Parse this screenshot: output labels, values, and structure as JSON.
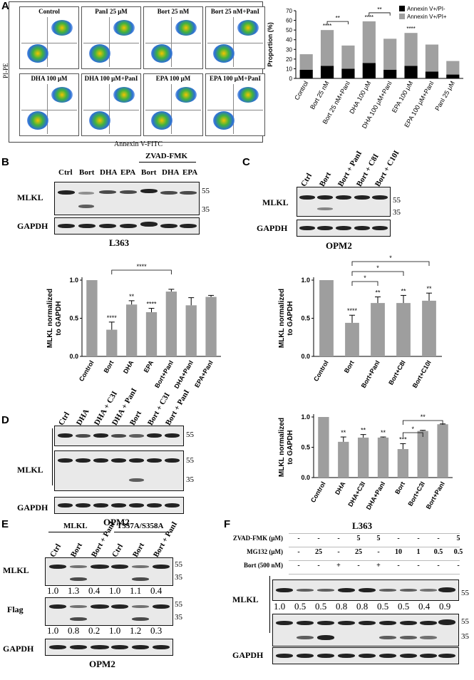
{
  "panels": {
    "A": {
      "label": "A",
      "flow_titles": [
        "Control",
        "PanI 25 μM",
        "Bort 25 nM",
        "Bort 25 nM+PanI",
        "DHA 100 μM",
        "DHA 100 μM+PanI",
        "EPA 100 μM",
        "EPA 100 μM+PanI"
      ],
      "flow_xlabel": "Annexin V-FITC",
      "flow_ylabel": "PI-PE",
      "chart_data": {
        "type": "bar",
        "stacked": true,
        "categories": [
          "Control",
          "Bort 25 nM",
          "Bort 25 nM+PanI",
          "DHA 100 μM",
          "DHA 100 μM+PanI",
          "EPA 100 μM",
          "EPA 100 μM+PanI",
          "PanI 25 μM"
        ],
        "series": [
          {
            "name": "Annexin V+/PI-",
            "color": "#000000",
            "values": [
              9,
              13,
              10,
              16,
              9,
              13,
              7,
              4
            ]
          },
          {
            "name": "Annexin V+/PI+",
            "color": "#a0a0a0",
            "values": [
              16,
              37,
              24,
              43,
              32,
              34,
              28,
              14
            ]
          }
        ],
        "ylabel": "Proportion (%)",
        "ylim": [
          0,
          70
        ],
        "yticks": [
          "0",
          "10",
          "20",
          "30",
          "40",
          "50",
          "60",
          "70"
        ],
        "sig": [
          "****",
          "****",
          "****"
        ],
        "brackets": [
          "**",
          "**"
        ],
        "legend": "top-right"
      }
    },
    "B": {
      "label": "B",
      "lanes": [
        "Ctrl",
        "Bort",
        "DHA",
        "EPA",
        "Bort",
        "DHA",
        "EPA"
      ],
      "group": "ZVAD-FMK",
      "rows": [
        "MLKL",
        "GAPDH"
      ],
      "mw": [
        "55",
        "35"
      ],
      "cell": "L363",
      "chart_data": {
        "type": "bar",
        "categories": [
          "Control",
          "Bort",
          "DHA",
          "EPA",
          "Bort+PanI",
          "DHA+PanI",
          "EPA+PanI"
        ],
        "values": [
          1.0,
          0.35,
          0.68,
          0.58,
          0.85,
          0.67,
          0.78
        ],
        "errors": [
          0,
          0.1,
          0.05,
          0.05,
          0.03,
          0.1,
          0.02
        ],
        "sig": [
          "",
          "****",
          "**",
          "****",
          "",
          "",
          ""
        ],
        "bracket": "****",
        "ylabel": "MLKL normalized to GAPDH",
        "ylim": [
          0,
          1.0
        ],
        "yticks": [
          "0.0",
          "0.5",
          "1.0"
        ]
      }
    },
    "C": {
      "label": "C",
      "lanes": [
        "Ctrl",
        "Bort",
        "Bort + PanI",
        "Bort + C8I",
        "Bort + C10I"
      ],
      "rows": [
        "MLKL",
        "GAPDH"
      ],
      "mw": [
        "55",
        "35"
      ],
      "cell": "OPM2",
      "chart_data": {
        "type": "bar",
        "categories": [
          "Control",
          "Bort",
          "Bort+PanI",
          "Bort+C8I",
          "Bort+C10I"
        ],
        "values": [
          1.0,
          0.44,
          0.7,
          0.7,
          0.73
        ],
        "errors": [
          0,
          0.1,
          0.08,
          0.1,
          0.1
        ],
        "sig": [
          "",
          "****",
          "**",
          "**",
          "**"
        ],
        "brackets": [
          "*",
          "*",
          "*"
        ],
        "ylabel": "MLKL normalized to GAPDH",
        "ylim": [
          0,
          1.0
        ],
        "yticks": [
          "0.0",
          "0.5",
          "1.0"
        ]
      }
    },
    "D": {
      "label": "D",
      "lanes": [
        "Ctrl",
        "DHA",
        "DHA + C3I",
        "DHA + PanI",
        "Bort",
        "Bort + C3I",
        "Bort + PanI"
      ],
      "rows": [
        "MLKL",
        "GAPDH"
      ],
      "mw": [
        "55",
        "55",
        "35"
      ],
      "cell": "OPM2",
      "chart_data": {
        "type": "bar",
        "categories": [
          "Control",
          "DHA",
          "DHA+C3I",
          "DHA+PanI",
          "Bort",
          "Bort+C3I",
          "Bort+PanI"
        ],
        "values": [
          1.0,
          0.59,
          0.66,
          0.66,
          0.47,
          0.77,
          0.88
        ],
        "errors": [
          0,
          0.08,
          0.05,
          0.01,
          0.09,
          0.01,
          0.005
        ],
        "sig": [
          "",
          "**",
          "**",
          "**",
          "***",
          "",
          ""
        ],
        "brackets": [
          "*",
          "**"
        ],
        "ylabel": "MLKL normalized to GAPDH",
        "ylim": [
          0,
          1.0
        ],
        "yticks": [
          "0.0",
          "0.5",
          "1.0"
        ]
      }
    },
    "E": {
      "label": "E",
      "groups": [
        "MLKL",
        "T357A/S358A"
      ],
      "lanes": [
        "Ctrl",
        "Bort",
        "Bort + PanI",
        "Ctrl",
        "Bort",
        "Bort + PanI"
      ],
      "rows": [
        "MLKL",
        "Flag",
        "GAPDH"
      ],
      "mw": [
        "55",
        "35",
        "55",
        "35"
      ],
      "mlkl_ratios": [
        "1.0",
        "1.3",
        "0.4",
        "1.0",
        "1.1",
        "0.4"
      ],
      "flag_ratios": [
        "1.0",
        "0.8",
        "0.2",
        "1.0",
        "1.2",
        "0.3"
      ],
      "cell": "OPM2"
    },
    "F": {
      "label": "F",
      "cell": "L363",
      "treatments": [
        {
          "label": "ZVAD-FMK (μM)",
          "values": [
            "-",
            "-",
            "-",
            "5",
            "5",
            "-",
            "-",
            "-",
            "5"
          ]
        },
        {
          "label": "MG132 (μM)",
          "values": [
            "-",
            "25",
            "-",
            "25",
            "-",
            "10",
            "1",
            "0.5",
            "0.5"
          ]
        },
        {
          "label": "Bort (500 nM)",
          "values": [
            "-",
            "-",
            "+",
            "-",
            "+",
            "-",
            "-",
            "-",
            "-"
          ]
        }
      ],
      "rows": [
        "MLKL",
        "GAPDH"
      ],
      "mw": [
        "55",
        "55",
        "35"
      ],
      "ratios": [
        "1.0",
        "0.5",
        "0.5",
        "0.8",
        "0.8",
        "0.5",
        "0.5",
        "0.4",
        "0.9"
      ]
    }
  }
}
